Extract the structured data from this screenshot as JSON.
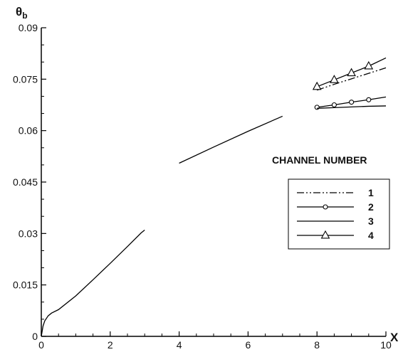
{
  "chart_data": {
    "type": "line",
    "xlabel": "X",
    "ylabel": "θ",
    "ylabel_subscript": "b",
    "xlim": [
      0,
      10
    ],
    "ylim": [
      0,
      0.09
    ],
    "xticks": [
      "0",
      "2",
      "4",
      "6",
      "8",
      "10"
    ],
    "yticks": [
      "0",
      "0.015",
      "0.03",
      "0.045",
      "0.06",
      "0.075",
      "0.09"
    ],
    "grid": false,
    "legend_title": "CHANNEL NUMBER",
    "legend_position": "right",
    "series": [
      {
        "name": "1",
        "style": "dash-dot-dot",
        "marker": "none",
        "x": [
          8.0,
          8.5,
          9.0,
          9.5,
          10.0
        ],
        "y": [
          0.0718,
          0.0735,
          0.0751,
          0.0767,
          0.0783
        ]
      },
      {
        "name": "2",
        "style": "solid",
        "marker": "circle",
        "x": [
          0,
          0.05,
          0.1,
          0.2,
          0.3,
          0.5,
          1.0,
          1.5,
          2.0,
          2.5,
          2.9,
          3.0,
          4.0,
          5.0,
          6.0,
          7.0,
          8.0,
          8.5,
          9.0,
          9.5,
          10.0
        ],
        "y": [
          0,
          0.003,
          0.0045,
          0.006,
          0.0068,
          0.0078,
          0.0118,
          0.0165,
          0.0213,
          0.0262,
          0.0302,
          0.031,
          0.0505,
          0.0552,
          0.0598,
          0.0642,
          0.0668,
          0.0675,
          0.0683,
          0.069,
          0.0698
        ],
        "markers_x": [
          8.0,
          8.5,
          9.0,
          9.5
        ],
        "markers_y": [
          0.0668,
          0.0675,
          0.0683,
          0.069
        ]
      },
      {
        "name": "3",
        "style": "solid",
        "marker": "none",
        "x": [
          8.0,
          8.5,
          9.0,
          9.5,
          10.0
        ],
        "y": [
          0.0665,
          0.0667,
          0.0669,
          0.0671,
          0.0672
        ]
      },
      {
        "name": "4",
        "style": "solid",
        "marker": "triangle",
        "x": [
          8.0,
          8.5,
          9.0,
          9.5,
          10.0
        ],
        "y": [
          0.0728,
          0.0748,
          0.0768,
          0.0788,
          0.0812
        ],
        "markers_x": [
          8.0,
          8.5,
          9.0,
          9.5
        ],
        "markers_y": [
          0.0728,
          0.0748,
          0.0768,
          0.0788
        ]
      }
    ]
  }
}
